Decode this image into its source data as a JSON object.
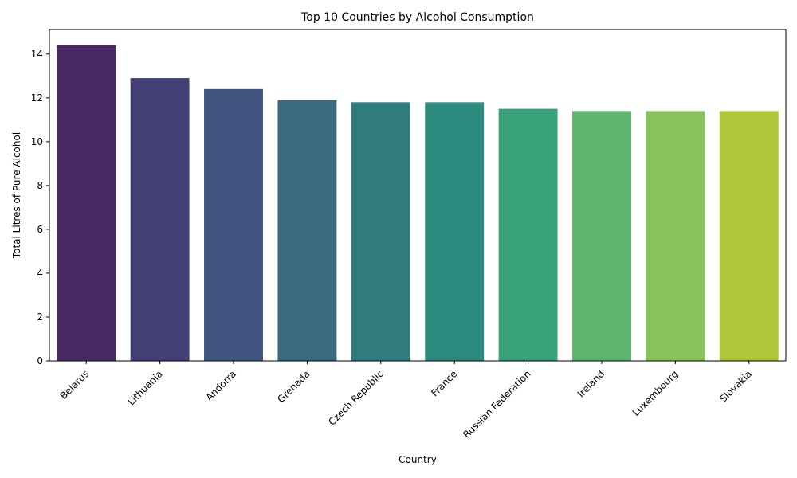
{
  "chart_data": {
    "type": "bar",
    "title": "Top 10 Countries by Alcohol Consumption",
    "xlabel": "Country",
    "ylabel": "Total Litres of Pure Alcohol",
    "categories": [
      "Belarus",
      "Lithuania",
      "Andorra",
      "Grenada",
      "Czech Republic",
      "France",
      "Russian Federation",
      "Ireland",
      "Luxembourg",
      "Slovakia"
    ],
    "values": [
      14.4,
      12.9,
      12.4,
      11.9,
      11.8,
      11.8,
      11.5,
      11.4,
      11.4,
      11.4
    ],
    "colors": [
      "#482a63",
      "#453f77",
      "#405680",
      "#386a80",
      "#2f7b7e",
      "#2c8a7f",
      "#3aa27a",
      "#5db56e",
      "#88c35c",
      "#b0c63a"
    ],
    "ylim": [
      0,
      15.12
    ],
    "yticks": [
      0,
      2,
      4,
      6,
      8,
      10,
      12,
      14
    ],
    "ytick_labels": [
      "0",
      "2",
      "4",
      "6",
      "8",
      "10",
      "12",
      "14"
    ],
    "grid": false,
    "legend": "none"
  }
}
